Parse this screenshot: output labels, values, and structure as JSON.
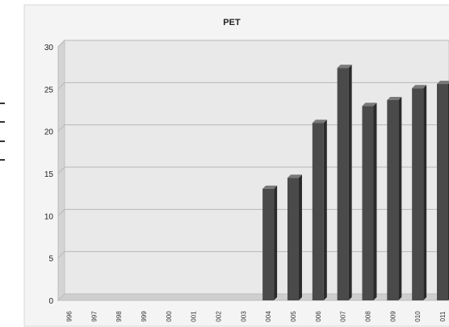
{
  "chart_data": {
    "type": "bar",
    "title": "PET",
    "categories": [
      "996",
      "997",
      "998",
      "999",
      "000",
      "001",
      "002",
      "003",
      "004",
      "005",
      "006",
      "007",
      "008",
      "009",
      "010",
      "011"
    ],
    "values": [
      0,
      0,
      0,
      0,
      0,
      0,
      0,
      0,
      13.2,
      14.5,
      21.0,
      27.5,
      23.0,
      23.7,
      25.1,
      25.6
    ],
    "ylim": [
      0,
      30
    ],
    "yticks": [
      0,
      5,
      10,
      15,
      20,
      25,
      30
    ],
    "grid": true,
    "colors": {
      "bar": "#4a4a4a",
      "bar_side": "#2a2a2a",
      "bar_top": "#7a7a7a",
      "plot_bg": "#e9e9e9",
      "wall": "#d4d4d4",
      "floor": "#cfcfcf",
      "gridline": "#b8b8b8"
    }
  }
}
